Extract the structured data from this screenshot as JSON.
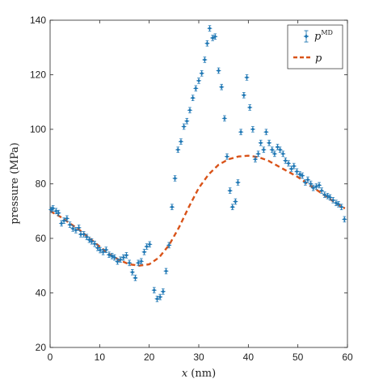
{
  "chart_data": {
    "type": "scatter",
    "xlabel_var": "x",
    "xlabel_unit": " (nm)",
    "ylabel": "pressure  (MPa)",
    "xlim": [
      0,
      60
    ],
    "ylim": [
      20,
      140
    ],
    "xticks": [
      0,
      10,
      20,
      30,
      40,
      50,
      60
    ],
    "yticks": [
      20,
      40,
      60,
      80,
      100,
      120,
      140
    ],
    "grid": false,
    "legend_position": "top-right",
    "series": [
      {
        "name_base": "p",
        "name_sup": "MD",
        "kind": "points-with-errorbars",
        "color": "#1f77b4",
        "error": 1.0,
        "points": [
          [
            0.2,
            70.5
          ],
          [
            0.6,
            71.0
          ],
          [
            1.2,
            70.0
          ],
          [
            1.7,
            69.3
          ],
          [
            2.3,
            65.5
          ],
          [
            2.8,
            66.5
          ],
          [
            3.4,
            67.3
          ],
          [
            4.0,
            65.0
          ],
          [
            4.6,
            63.6
          ],
          [
            5.2,
            63.0
          ],
          [
            5.8,
            63.9
          ],
          [
            6.2,
            61.5
          ],
          [
            6.8,
            61.5
          ],
          [
            7.4,
            60.5
          ],
          [
            7.9,
            59.5
          ],
          [
            8.4,
            58.9
          ],
          [
            9.0,
            58.0
          ],
          [
            9.6,
            56.5
          ],
          [
            10.1,
            55.7
          ],
          [
            10.7,
            55.0
          ],
          [
            11.3,
            55.8
          ],
          [
            11.9,
            54.0
          ],
          [
            12.5,
            53.5
          ],
          [
            13.0,
            53.0
          ],
          [
            13.6,
            51.5
          ],
          [
            14.2,
            52.2
          ],
          [
            14.8,
            53.0
          ],
          [
            15.4,
            53.8
          ],
          [
            16.0,
            51.0
          ],
          [
            16.6,
            47.6
          ],
          [
            17.2,
            45.5
          ],
          [
            17.8,
            51.0
          ],
          [
            18.4,
            51.6
          ],
          [
            19.0,
            55.0
          ],
          [
            19.5,
            57.0
          ],
          [
            20.1,
            57.8
          ],
          [
            21.0,
            41.0
          ],
          [
            21.6,
            37.8
          ],
          [
            22.2,
            38.5
          ],
          [
            22.8,
            40.5
          ],
          [
            23.4,
            48.0
          ],
          [
            24.0,
            57.5
          ],
          [
            24.6,
            71.5
          ],
          [
            25.2,
            82.0
          ],
          [
            25.8,
            92.5
          ],
          [
            26.4,
            95.5
          ],
          [
            27.0,
            101.0
          ],
          [
            27.6,
            103.0
          ],
          [
            28.2,
            107.0
          ],
          [
            28.8,
            111.5
          ],
          [
            29.4,
            115.0
          ],
          [
            30.0,
            117.8
          ],
          [
            30.6,
            120.5
          ],
          [
            31.2,
            125.5
          ],
          [
            31.7,
            131.5
          ],
          [
            32.2,
            137.0
          ],
          [
            32.8,
            133.5
          ],
          [
            33.3,
            134.0
          ],
          [
            34.0,
            121.5
          ],
          [
            34.6,
            115.5
          ],
          [
            35.2,
            104.0
          ],
          [
            35.7,
            90.0
          ],
          [
            36.3,
            77.5
          ],
          [
            36.8,
            71.5
          ],
          [
            37.4,
            73.5
          ],
          [
            37.9,
            80.5
          ],
          [
            38.5,
            99.0
          ],
          [
            39.1,
            112.5
          ],
          [
            39.7,
            119.0
          ],
          [
            40.3,
            108.0
          ],
          [
            40.9,
            100.0
          ],
          [
            41.4,
            89.0
          ],
          [
            42.0,
            91.0
          ],
          [
            42.5,
            95.0
          ],
          [
            43.1,
            92.5
          ],
          [
            43.6,
            99.0
          ],
          [
            44.2,
            95.0
          ],
          [
            44.8,
            92.5
          ],
          [
            45.3,
            91.0
          ],
          [
            45.9,
            93.5
          ],
          [
            46.4,
            92.5
          ],
          [
            47.0,
            91.0
          ],
          [
            47.5,
            88.5
          ],
          [
            48.1,
            87.5
          ],
          [
            48.7,
            85.5
          ],
          [
            49.2,
            86.5
          ],
          [
            49.8,
            84.5
          ],
          [
            50.4,
            83.5
          ],
          [
            50.9,
            83.0
          ],
          [
            51.5,
            80.5
          ],
          [
            52.0,
            81.5
          ],
          [
            52.6,
            80.0
          ],
          [
            53.1,
            78.5
          ],
          [
            53.7,
            79.0
          ],
          [
            54.3,
            79.5
          ],
          [
            54.8,
            77.5
          ],
          [
            55.4,
            76.0
          ],
          [
            56.0,
            75.5
          ],
          [
            56.5,
            75.0
          ],
          [
            57.1,
            74.0
          ],
          [
            57.7,
            73.0
          ],
          [
            58.2,
            72.5
          ],
          [
            58.8,
            71.5
          ],
          [
            59.4,
            67.0
          ]
        ]
      },
      {
        "name_base": "p",
        "kind": "dashed-line",
        "color": "#d95319",
        "points": [
          [
            0,
            70.0
          ],
          [
            2,
            68.0
          ],
          [
            4,
            65.5
          ],
          [
            6,
            63.0
          ],
          [
            8,
            60.0
          ],
          [
            10,
            57.0
          ],
          [
            12,
            54.2
          ],
          [
            14,
            52.0
          ],
          [
            16,
            50.5
          ],
          [
            18,
            50.0
          ],
          [
            20,
            50.5
          ],
          [
            22,
            53.0
          ],
          [
            24,
            57.5
          ],
          [
            26,
            64.0
          ],
          [
            28,
            71.5
          ],
          [
            30,
            78.5
          ],
          [
            32,
            83.5
          ],
          [
            34,
            87.0
          ],
          [
            36,
            89.0
          ],
          [
            38,
            90.0
          ],
          [
            40,
            90.3
          ],
          [
            42,
            89.8
          ],
          [
            44,
            88.5
          ],
          [
            46,
            86.5
          ],
          [
            48,
            84.5
          ],
          [
            50,
            82.5
          ],
          [
            52,
            80.0
          ],
          [
            54,
            77.5
          ],
          [
            56,
            75.0
          ],
          [
            58,
            72.5
          ],
          [
            59.5,
            71.0
          ]
        ]
      }
    ]
  }
}
